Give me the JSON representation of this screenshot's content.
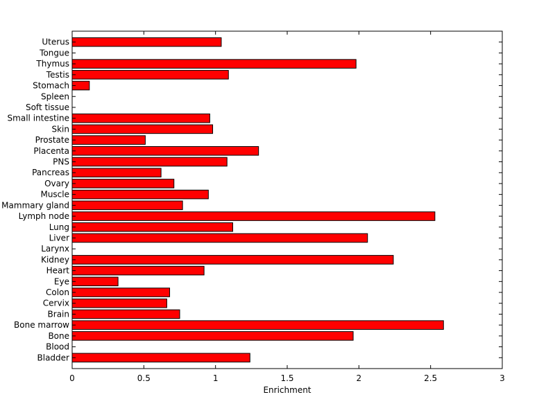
{
  "chart_data": {
    "type": "bar",
    "orientation": "horizontal",
    "title": "",
    "xlabel": "Enrichment",
    "ylabel": "",
    "xlim": [
      0,
      3
    ],
    "xticks": [
      0,
      0.5,
      1,
      1.5,
      2,
      2.5,
      3
    ],
    "xtick_labels": [
      "0",
      "0.5",
      "1",
      "1.5",
      "2",
      "2.5",
      "3"
    ],
    "grid": false,
    "legend": "none",
    "bar_color": "#ff0000",
    "categories": [
      "Bladder",
      "Blood",
      "Bone",
      "Bone marrow",
      "Brain",
      "Cervix",
      "Colon",
      "Eye",
      "Heart",
      "Kidney",
      "Larynx",
      "Liver",
      "Lung",
      "Lymph node",
      "Mammary gland",
      "Muscle",
      "Ovary",
      "Pancreas",
      "PNS",
      "Placenta",
      "Prostate",
      "Skin",
      "Small intestine",
      "Soft tissue",
      "Spleen",
      "Stomach",
      "Testis",
      "Thymus",
      "Tongue",
      "Uterus"
    ],
    "values": [
      1.24,
      0,
      1.96,
      2.59,
      0.75,
      0.66,
      0.68,
      0.32,
      0.92,
      2.24,
      0,
      2.06,
      1.12,
      2.53,
      0.77,
      0.95,
      0.71,
      0.62,
      1.08,
      1.3,
      0.51,
      0.98,
      0.96,
      0,
      0,
      0.12,
      1.09,
      1.98,
      0,
      1.04
    ]
  }
}
